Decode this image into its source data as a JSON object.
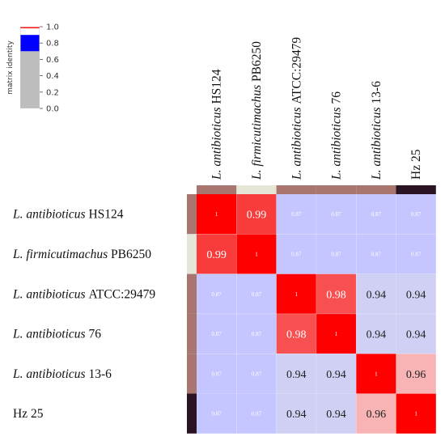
{
  "chart_data": {
    "type": "heatmap",
    "row_labels": [
      {
        "species": "L. antibioticus",
        "strain": "HS124"
      },
      {
        "species": "L. firmicutimachus",
        "strain": "PB6250"
      },
      {
        "species": "L. antibioticus",
        "strain": "ATCC:29479"
      },
      {
        "species": "L. antibioticus",
        "strain": "76"
      },
      {
        "species": "L. antibioticus",
        "strain": "13-6"
      },
      {
        "species": "",
        "strain": "Hz 25"
      }
    ],
    "col_labels": [
      {
        "species": "L. antibioticus",
        "strain": "HS124"
      },
      {
        "species": "L. firmicutimachus",
        "strain": "PB6250"
      },
      {
        "species": "L. antibioticus",
        "strain": "ATCC:29479"
      },
      {
        "species": "L. antibioticus",
        "strain": "76"
      },
      {
        "species": "L. antibioticus",
        "strain": "13-6"
      },
      {
        "species": "",
        "strain": "Hz 25"
      }
    ],
    "matrix": [
      [
        1,
        0.99,
        0.87,
        0.87,
        0.87,
        0.87
      ],
      [
        0.99,
        1,
        0.87,
        0.87,
        0.87,
        0.87
      ],
      [
        0.87,
        0.87,
        1,
        0.98,
        0.94,
        0.94
      ],
      [
        0.87,
        0.87,
        0.98,
        1,
        0.94,
        0.94
      ],
      [
        0.87,
        0.87,
        0.94,
        0.94,
        1,
        0.96
      ],
      [
        0.87,
        0.87,
        0.94,
        0.94,
        0.96,
        1
      ]
    ],
    "cell_labels": [
      [
        "1",
        "0.99",
        "0.87",
        "0.87",
        "0.87",
        "0.87"
      ],
      [
        "0.99",
        "1",
        "0.87",
        "0.87",
        "0.87",
        "0.87"
      ],
      [
        "0.87",
        "0.87",
        "1",
        "0.98",
        "0.94",
        "0.94"
      ],
      [
        "0.87",
        "0.87",
        "0.98",
        "1",
        "0.94",
        "0.94"
      ],
      [
        "0.87",
        "0.87",
        "0.94",
        "0.94",
        "1",
        "0.96"
      ],
      [
        "0.87",
        "0.87",
        "0.94",
        "0.94",
        "0.96",
        "1"
      ]
    ],
    "group_colors": [
      "#a8766e",
      "#e6e6d6",
      "#a8766e",
      "#a8766e",
      "#a8766e",
      "#2a1424"
    ],
    "colorbar": {
      "label": "matrix identity",
      "range": [
        0,
        1
      ],
      "ticks": [
        0.0,
        0.2,
        0.4,
        0.6,
        0.8,
        1.0
      ],
      "tick_labels": [
        "0.0",
        "0.2",
        "0.4",
        "0.6",
        "0.8",
        "1.0"
      ],
      "segments": [
        {
          "from": 0.0,
          "to": 0.7,
          "color": "#bdbdbd"
        },
        {
          "from": 0.7,
          "to": 0.9,
          "color": "#0000ff"
        },
        {
          "from": 0.9,
          "to": 0.98,
          "color": "#ffffff"
        },
        {
          "from": 0.98,
          "to": 1.0,
          "color": "#ff2020"
        }
      ]
    },
    "color_stops": [
      {
        "value": 0.7,
        "color": "#0000ff"
      },
      {
        "value": 0.9,
        "color": "#e8e8ff"
      },
      {
        "value": 0.94,
        "color": "#d0d0f4"
      },
      {
        "value": 0.96,
        "color": "#f8b4b4"
      },
      {
        "value": 0.98,
        "color": "#f85050"
      },
      {
        "value": 0.99,
        "color": "#f83c3c"
      },
      {
        "value": 1.0,
        "color": "#ff0000"
      }
    ]
  }
}
